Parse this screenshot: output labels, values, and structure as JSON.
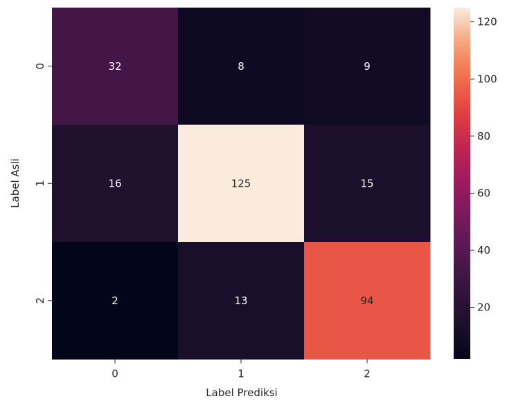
{
  "chart_data": {
    "type": "heatmap",
    "xlabel": "Label Prediksi",
    "ylabel": "Label Asli",
    "x_categories": [
      "0",
      "1",
      "2"
    ],
    "y_categories": [
      "0",
      "1",
      "2"
    ],
    "values": [
      [
        32,
        8,
        9
      ],
      [
        16,
        125,
        15
      ],
      [
        2,
        13,
        94
      ]
    ],
    "colormap": "rocket",
    "colorbar": {
      "min": 2,
      "max": 125,
      "ticks": [
        "20",
        "40",
        "60",
        "80",
        "100",
        "120"
      ]
    }
  }
}
